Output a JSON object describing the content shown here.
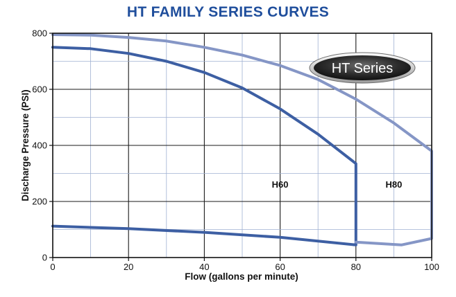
{
  "chart_data": {
    "type": "line",
    "title": "HT FAMILY SERIES CURVES",
    "xlabel": "Flow (gallons per minute)",
    "ylabel": "Discharge Pressure (PSI)",
    "xlim": [
      0,
      100
    ],
    "ylim": [
      0,
      800
    ],
    "x_ticks": [
      0,
      20,
      40,
      60,
      80,
      100
    ],
    "y_ticks": [
      0,
      200,
      400,
      600,
      800
    ],
    "x_minor_step": 10,
    "y_minor_step": 100,
    "grid": true,
    "badge": "HT Series",
    "series": [
      {
        "name": "H60",
        "color": "#3d5fa3",
        "label_at": [
          60,
          250
        ],
        "points": [
          [
            0,
            750
          ],
          [
            10,
            745
          ],
          [
            20,
            728
          ],
          [
            30,
            700
          ],
          [
            40,
            660
          ],
          [
            50,
            605
          ],
          [
            60,
            530
          ],
          [
            70,
            440
          ],
          [
            80,
            335
          ],
          [
            80,
            45
          ],
          [
            60,
            72
          ],
          [
            40,
            90
          ],
          [
            20,
            103
          ],
          [
            0,
            112
          ]
        ]
      },
      {
        "name": "H80",
        "color": "#8596c6",
        "label_at": [
          90,
          250
        ],
        "points": [
          [
            0,
            795
          ],
          [
            10,
            793
          ],
          [
            20,
            785
          ],
          [
            30,
            772
          ],
          [
            40,
            750
          ],
          [
            50,
            722
          ],
          [
            60,
            685
          ],
          [
            70,
            635
          ],
          [
            80,
            565
          ],
          [
            90,
            480
          ],
          [
            100,
            380
          ],
          [
            100,
            68
          ],
          [
            92,
            45
          ],
          [
            80,
            55
          ]
        ]
      }
    ]
  }
}
